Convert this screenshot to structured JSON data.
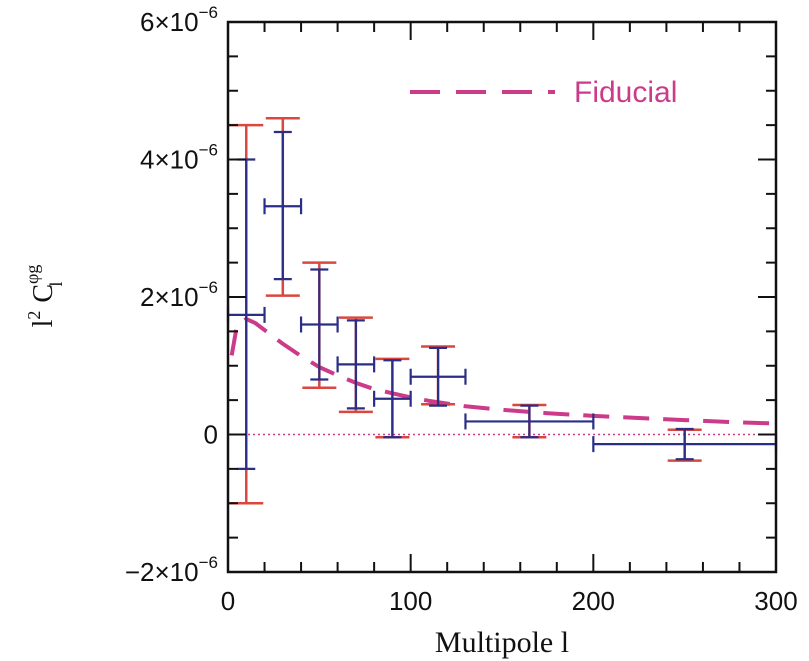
{
  "chart_data": {
    "type": "scatter",
    "xlabel": "Multipole l",
    "ylabel": "l² C_l^{φg}",
    "xlim": [
      0,
      300
    ],
    "ylim": [
      -2e-06,
      6e-06
    ],
    "x_ticks": [
      {
        "value": 0,
        "label": "0"
      },
      {
        "value": 100,
        "label": "100"
      },
      {
        "value": 200,
        "label": "200"
      },
      {
        "value": 300,
        "label": "300"
      }
    ],
    "y_ticks": [
      {
        "value": -2e-06,
        "mantissa": "−2×10",
        "exp": "−6"
      },
      {
        "value": 0,
        "mantissa": "0",
        "exp": ""
      },
      {
        "value": 2e-06,
        "mantissa": "2×10",
        "exp": "−6"
      },
      {
        "value": 4e-06,
        "mantissa": "4×10",
        "exp": "−6"
      },
      {
        "value": 6e-06,
        "mantissa": "6×10",
        "exp": "−6"
      }
    ],
    "colors": {
      "outer": "#d9473f",
      "inner": "#2a2e86",
      "fiducial": "#cc3a8a",
      "zero": "#cc3a8a",
      "axes": "#111111"
    },
    "series": [
      {
        "name": "",
        "kind": "errorbars-outer",
        "points": [
          {
            "x": 10,
            "ylo": -1e-06,
            "yhi": 4.5e-06
          },
          {
            "x": 30,
            "ylo": 2.02e-06,
            "yhi": 4.6e-06
          },
          {
            "x": 50,
            "ylo": 6.8e-07,
            "yhi": 2.5e-06
          },
          {
            "x": 70,
            "ylo": 3.3e-07,
            "yhi": 1.7e-06
          },
          {
            "x": 90,
            "ylo": -4e-08,
            "yhi": 1.1e-06
          },
          {
            "x": 115,
            "ylo": 4.4e-07,
            "yhi": 1.28e-06
          },
          {
            "x": 165,
            "ylo": -4e-08,
            "yhi": 4.3e-07
          },
          {
            "x": 250,
            "ylo": -3.8e-07,
            "yhi": 7e-08
          }
        ]
      },
      {
        "name": "",
        "kind": "errorbars-inner",
        "points": [
          {
            "x": 10,
            "y": 1.74e-06,
            "xlo": 0,
            "xhi": 20,
            "ylo": -5e-07,
            "yhi": 4e-06
          },
          {
            "x": 30,
            "y": 3.32e-06,
            "xlo": 20,
            "xhi": 40,
            "ylo": 2.26e-06,
            "yhi": 4.4e-06
          },
          {
            "x": 50,
            "y": 1.6e-06,
            "xlo": 40,
            "xhi": 60,
            "ylo": 8e-07,
            "yhi": 2.4e-06
          },
          {
            "x": 70,
            "y": 1.02e-06,
            "xlo": 60,
            "xhi": 80,
            "ylo": 3.8e-07,
            "yhi": 1.66e-06
          },
          {
            "x": 90,
            "y": 5.2e-07,
            "xlo": 80,
            "xhi": 100,
            "ylo": -4e-08,
            "yhi": 1.08e-06
          },
          {
            "x": 115,
            "y": 8.4e-07,
            "xlo": 100,
            "xhi": 130,
            "ylo": 4.2e-07,
            "yhi": 1.26e-06
          },
          {
            "x": 165,
            "y": 1.9e-07,
            "xlo": 130,
            "xhi": 200,
            "ylo": -4e-08,
            "yhi": 4.2e-07
          },
          {
            "x": 250,
            "y": -1.4e-07,
            "xlo": 200,
            "xhi": 300,
            "ylo": -3.6e-07,
            "yhi": 8e-08
          }
        ]
      },
      {
        "name": "Fiducial",
        "kind": "dashed-line",
        "x": [
          2,
          5,
          10,
          15,
          20,
          30,
          40,
          50,
          60,
          70,
          80,
          90,
          100,
          110,
          120,
          130,
          150,
          175,
          200,
          225,
          250,
          275,
          300
        ],
        "y": [
          1.15e-06,
          1.6e-06,
          1.68e-06,
          1.62e-06,
          1.52e-06,
          1.32e-06,
          1.14e-06,
          9.8e-07,
          8.6e-07,
          7.5e-07,
          6.6e-07,
          6e-07,
          5.4e-07,
          4.9e-07,
          4.5e-07,
          4.1e-07,
          3.6e-07,
          3.1e-07,
          2.7e-07,
          2.4e-07,
          2.1e-07,
          1.8e-07,
          1.6e-07
        ]
      }
    ],
    "legend": {
      "label": "Fiducial",
      "placement": "top-right"
    }
  }
}
